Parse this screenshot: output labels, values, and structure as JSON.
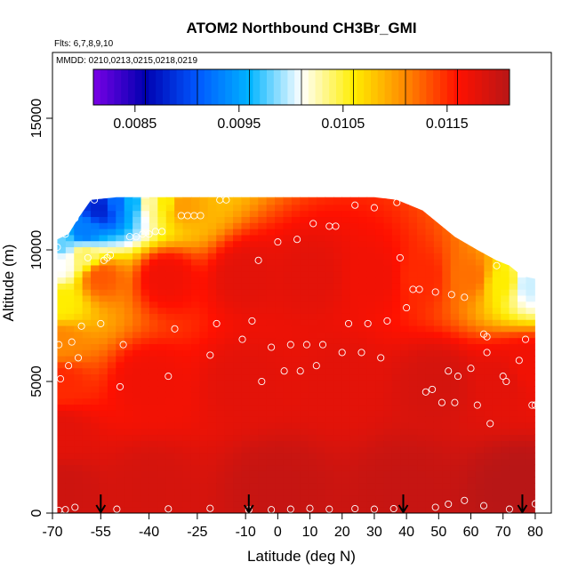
{
  "chart_data": {
    "type": "heatmap",
    "title": "ATOM2 Northbound CH3Br_GMI",
    "flights_note": "Flts: 6,7,8,9,10",
    "mmdd_note": "MMDD: 0210,0213,0215,0218,0219",
    "xlabel": "Latitude (deg N)",
    "ylabel": "Altitude (m)",
    "xlim": [
      -70,
      85
    ],
    "ylim": [
      0,
      17500
    ],
    "x_ticks": [
      "-70",
      "-55",
      "-40",
      "-25",
      "-10",
      "0",
      "10",
      "20",
      "30",
      "40",
      "50",
      "60",
      "70",
      "80"
    ],
    "x_tick_values": [
      -70,
      -55,
      -40,
      -25,
      -10,
      0,
      10,
      20,
      30,
      40,
      50,
      60,
      70,
      80
    ],
    "y_ticks": [
      "0",
      "5000",
      "10000",
      "15000"
    ],
    "y_tick_values": [
      0,
      5000,
      10000,
      15000
    ],
    "colorbar": {
      "range": [
        0.0081,
        0.0121
      ],
      "tick_labels": [
        "0.0085",
        "0.0095",
        "0.0105",
        "0.0115"
      ],
      "tick_values": [
        0.0085,
        0.0095,
        0.0105,
        0.0115
      ],
      "colors": [
        "#7a00e6",
        "#0000b0",
        "#0058ff",
        "#00b4ff",
        "#ffffff",
        "#ffee00",
        "#ff8800",
        "#ff1100",
        "#b81616"
      ]
    },
    "coverage": {
      "lat_min": -68.5,
      "lat_max": 80,
      "top_altitude_by_lat": [
        [
          -68.5,
          10400
        ],
        [
          -65,
          10600
        ],
        [
          -62,
          11200
        ],
        [
          -58,
          11900
        ],
        [
          -50,
          12000
        ],
        [
          -20,
          12000
        ],
        [
          30,
          12000
        ],
        [
          37,
          11900
        ],
        [
          45,
          11500
        ],
        [
          55,
          10500
        ],
        [
          62,
          10000
        ],
        [
          68,
          9600
        ],
        [
          72,
          9400
        ],
        [
          76,
          9000
        ],
        [
          80,
          8900
        ]
      ]
    },
    "field_values": {
      "note": "CH3Br mixing ratio field sampled in data units",
      "cells": [
        [
          -68,
          1000,
          0.01195
        ],
        [
          -68,
          3000,
          0.0118
        ],
        [
          -68,
          5000,
          0.0115
        ],
        [
          -68,
          6500,
          0.0111
        ],
        [
          -68,
          8000,
          0.0106
        ],
        [
          -68,
          9500,
          0.0101
        ],
        [
          -68,
          10200,
          0.0098
        ],
        [
          -60,
          9800,
          0.0104
        ],
        [
          -60,
          10700,
          0.0093
        ],
        [
          -55,
          11600,
          0.0088
        ],
        [
          -50,
          11800,
          0.0092
        ],
        [
          -45,
          11800,
          0.0096
        ],
        [
          -40,
          11800,
          0.0103
        ],
        [
          -35,
          11800,
          0.0106
        ],
        [
          -30,
          11700,
          0.011
        ],
        [
          -55,
          9000,
          0.0113
        ],
        [
          -35,
          9000,
          0.0117
        ],
        [
          -10,
          9000,
          0.0118
        ],
        [
          10,
          9000,
          0.0118
        ],
        [
          30,
          9000,
          0.0117
        ],
        [
          45,
          9000,
          0.0115
        ],
        [
          60,
          9000,
          0.0112
        ],
        [
          70,
          8800,
          0.0106
        ],
        [
          78,
          8700,
          0.01
        ],
        [
          -40,
          5000,
          0.0117
        ],
        [
          -10,
          5000,
          0.0118
        ],
        [
          20,
          5000,
          0.0118
        ],
        [
          50,
          5000,
          0.0119
        ],
        [
          70,
          5000,
          0.0118
        ],
        [
          78,
          5500,
          0.0117
        ],
        [
          -40,
          1000,
          0.0119
        ],
        [
          0,
          1000,
          0.012
        ],
        [
          40,
          1000,
          0.012
        ],
        [
          75,
          1000,
          0.0121
        ]
      ]
    },
    "observations": [
      [
        -68.5,
        10100
      ],
      [
        -68,
        6400
      ],
      [
        -67.5,
        5100
      ],
      [
        -66,
        10600
      ],
      [
        -65,
        5600
      ],
      [
        -64,
        6500
      ],
      [
        -63,
        11200
      ],
      [
        -62,
        5900
      ],
      [
        -61,
        7100
      ],
      [
        -60,
        11800
      ],
      [
        -59,
        9700
      ],
      [
        -57,
        11900
      ],
      [
        -55,
        7200
      ],
      [
        -54,
        9600
      ],
      [
        -53,
        9700
      ],
      [
        -52,
        9800
      ],
      [
        -49,
        4800
      ],
      [
        -48,
        6400
      ],
      [
        -46,
        10500
      ],
      [
        -44,
        10500
      ],
      [
        -42,
        10600
      ],
      [
        -40,
        10600
      ],
      [
        -38,
        10700
      ],
      [
        -36,
        10700
      ],
      [
        -34,
        5200
      ],
      [
        -32,
        7000
      ],
      [
        -30,
        11300
      ],
      [
        -28,
        11300
      ],
      [
        -26,
        11300
      ],
      [
        -24,
        11300
      ],
      [
        -21,
        6000
      ],
      [
        -19,
        7200
      ],
      [
        -18,
        11900
      ],
      [
        -16,
        11900
      ],
      [
        -11,
        6600
      ],
      [
        -8,
        7300
      ],
      [
        -6,
        9600
      ],
      [
        -5,
        5000
      ],
      [
        -2,
        6300
      ],
      [
        0,
        10300
      ],
      [
        2,
        5400
      ],
      [
        4,
        6400
      ],
      [
        6,
        10400
      ],
      [
        7,
        5400
      ],
      [
        9,
        6400
      ],
      [
        11,
        11000
      ],
      [
        12,
        5600
      ],
      [
        14,
        6400
      ],
      [
        16,
        10900
      ],
      [
        18,
        10900
      ],
      [
        20,
        6100
      ],
      [
        22,
        7200
      ],
      [
        24,
        11700
      ],
      [
        26,
        6100
      ],
      [
        28,
        7200
      ],
      [
        30,
        11600
      ],
      [
        32,
        5900
      ],
      [
        34,
        7300
      ],
      [
        37,
        11800
      ],
      [
        38,
        9700
      ],
      [
        40,
        7800
      ],
      [
        42,
        8500
      ],
      [
        44,
        8500
      ],
      [
        46,
        4600
      ],
      [
        48,
        4700
      ],
      [
        49,
        8400
      ],
      [
        51,
        4200
      ],
      [
        53,
        5400
      ],
      [
        54,
        8300
      ],
      [
        55,
        4200
      ],
      [
        56,
        5200
      ],
      [
        58,
        8200
      ],
      [
        60,
        5500
      ],
      [
        62,
        4100
      ],
      [
        64,
        6800
      ],
      [
        65,
        6700
      ],
      [
        65,
        6100
      ],
      [
        66,
        3400
      ],
      [
        68,
        9400
      ],
      [
        70,
        5200
      ],
      [
        71,
        5000
      ],
      [
        74,
        9400
      ],
      [
        75,
        5800
      ],
      [
        77,
        6600
      ],
      [
        79,
        4100
      ],
      [
        80,
        4100
      ],
      [
        -68,
        100
      ],
      [
        -66,
        130
      ],
      [
        -63,
        220
      ],
      [
        -50,
        150
      ],
      [
        -34,
        160
      ],
      [
        -21,
        180
      ],
      [
        -9,
        130
      ],
      [
        -2,
        130
      ],
      [
        4,
        150
      ],
      [
        10,
        180
      ],
      [
        16,
        150
      ],
      [
        24,
        170
      ],
      [
        30,
        150
      ],
      [
        36,
        170
      ],
      [
        49,
        220
      ],
      [
        53,
        340
      ],
      [
        58,
        480
      ],
      [
        64,
        280
      ],
      [
        72,
        150
      ],
      [
        80,
        350
      ]
    ],
    "arrows_lat": [
      -55,
      -9,
      39,
      76
    ]
  }
}
